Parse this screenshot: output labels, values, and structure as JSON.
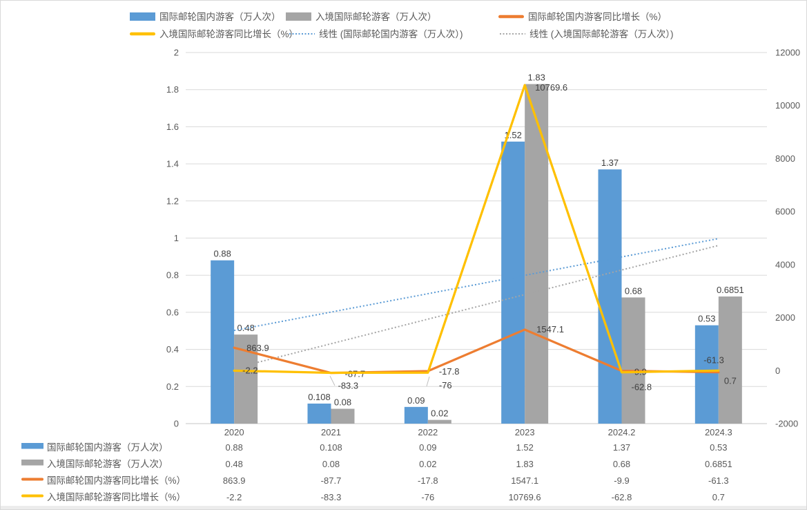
{
  "chart_data": {
    "type": "combo-bar-line",
    "categories": [
      "2020",
      "2021",
      "2022",
      "2023",
      "2024.2",
      "2024.3"
    ],
    "series": [
      {
        "name": "国际邮轮国内游客（万人次）",
        "chart": "bar",
        "axis": "left",
        "color": "#5B9BD5",
        "values": [
          0.88,
          0.108,
          0.09,
          1.52,
          1.37,
          0.53
        ],
        "labels": [
          "0.88",
          "0.108",
          "0.09",
          "1.52",
          "1.37",
          "0.53"
        ]
      },
      {
        "name": "入境国际邮轮游客（万人次）",
        "chart": "bar",
        "axis": "left",
        "color": "#A5A5A5",
        "values": [
          0.48,
          0.08,
          0.02,
          1.83,
          0.68,
          0.6851
        ],
        "labels": [
          "0.48",
          "0.08",
          "0.02",
          "1.83",
          "0.68",
          "0.6851"
        ]
      },
      {
        "name": "国际邮轮国内游客同比增长（%）",
        "chart": "line",
        "axis": "right",
        "color": "#ED7D31",
        "values": [
          863.9,
          -87.7,
          -17.8,
          1547.1,
          -9.9,
          -61.3
        ],
        "labels": [
          "863.9",
          "-87.7",
          "-17.8",
          "1547.1",
          "-9.9",
          "-61.3"
        ]
      },
      {
        "name": "入境国际邮轮游客同比增长（%）",
        "chart": "line",
        "axis": "right",
        "color": "#FFC000",
        "values": [
          -2.2,
          -83.3,
          -76,
          10769.6,
          -62.8,
          0.7
        ],
        "labels": [
          "-2.2",
          "-83.3",
          "-76",
          "10769.6",
          "-62.8",
          "0.7"
        ]
      }
    ],
    "trendlines": [
      {
        "name": "线性 (国际邮轮国内游客（万人次）)",
        "series": 0,
        "color": "#5B9BD5"
      },
      {
        "name": "线性 (入境国际邮轮游客（万人次）)",
        "series": 1,
        "color": "#A5A5A5"
      }
    ],
    "left_axis": {
      "min": 0,
      "max": 2,
      "ticks": [
        "0",
        "0.2",
        "0.4",
        "0.6",
        "0.8",
        "1",
        "1.2",
        "1.4",
        "1.6",
        "1.8",
        "2"
      ]
    },
    "right_axis": {
      "min": -2000,
      "max": 12000,
      "ticks": [
        "-2000",
        "0",
        "2000",
        "4000",
        "6000",
        "8000",
        "10000",
        "12000"
      ]
    },
    "legend_position": "top",
    "grid": true,
    "data_table": true
  },
  "colors": {
    "grid": "#D9D9D9",
    "axis_line": "#C6C6C6",
    "tick_text": "#595959",
    "data_label": "#404040",
    "leader": "#BFBFBF",
    "background": "#FFFFFF",
    "border": "#D9D9D9"
  }
}
